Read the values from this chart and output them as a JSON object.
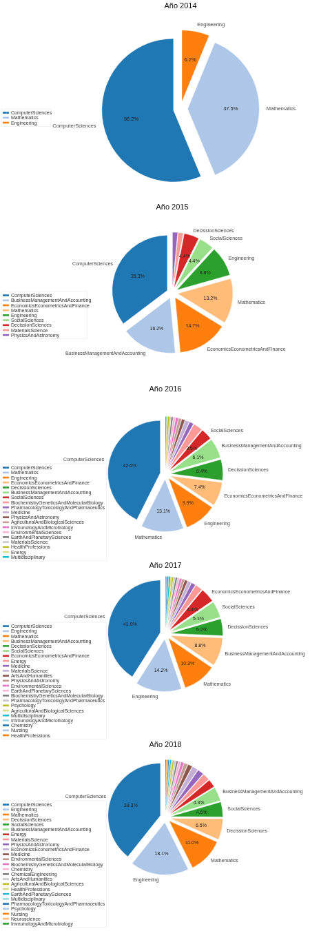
{
  "chart_data": [
    {
      "type": "pie",
      "title": "Año 2014",
      "legend": "left",
      "categories": [
        "ComputerSciences",
        "Mathematics",
        "Engineering"
      ],
      "values": [
        56.2,
        37.5,
        6.2
      ],
      "colors": [
        "#1f77b4",
        "#aec7e8",
        "#ff7f0e"
      ],
      "value_labels": [
        "56.2%",
        "37.5%",
        "6.2%"
      ]
    },
    {
      "type": "pie",
      "title": "Año 2015",
      "legend": "left",
      "categories": [
        "ComputerSciences",
        "BusinessManagementAndAccounting",
        "EconomicsEconometricsAndFinance",
        "Mathematics",
        "Engineering",
        "SocialSciences",
        "DecissionSciences",
        "MaterialsScience",
        "PhysicsAndAstronomy"
      ],
      "values": [
        35.3,
        16.2,
        14.7,
        13.2,
        8.8,
        4.4,
        4.4,
        1.5,
        1.5
      ],
      "colors": [
        "#1f77b4",
        "#aec7e8",
        "#ff7f0e",
        "#ffbb78",
        "#2ca02c",
        "#98df8a",
        "#d62728",
        "#ff9896",
        "#9467bd"
      ],
      "value_labels": [
        "35.3%",
        "16.2%",
        "14.7%",
        "13.2%",
        "8.8%",
        "4.4%",
        "4.4%",
        null,
        null
      ]
    },
    {
      "type": "pie",
      "title": "Año 2016",
      "legend": "left",
      "categories": [
        "ComputerSciences",
        "Mathematics",
        "Engineering",
        "EconomicsEconometricsAndFinance",
        "DecissionSciences",
        "BusinessManagementAndAccounting",
        "SocialSciences",
        "BiochemistryGeneticsAndMolecularBiology",
        "PharmacologyToxicologyAndPharmaceutics",
        "Medicine",
        "PhysicsAndAstronomy",
        "AgriculturalAndBiologicalSciences",
        "ImmunologyAndMicrobiology",
        "EnvironmentalSciences",
        "EarthAndPlanetarySciences",
        "MaterialsScience",
        "HealthProfessions",
        "Energy",
        "Multidisciplinary"
      ],
      "values": [
        42.6,
        13.1,
        9.9,
        7.4,
        6.4,
        6.1,
        3.5,
        2.8,
        1.3,
        1.3,
        1.0,
        0.9,
        0.8,
        0.7,
        0.6,
        0.5,
        0.4,
        0.4,
        0.3
      ],
      "colors": [
        "#1f77b4",
        "#aec7e8",
        "#ff7f0e",
        "#ffbb78",
        "#2ca02c",
        "#98df8a",
        "#d62728",
        "#ff9896",
        "#9467bd",
        "#c5b0d5",
        "#8c564b",
        "#c49c94",
        "#e377c2",
        "#f7b6d2",
        "#7f7f7f",
        "#c7c7c7",
        "#bcbd22",
        "#dbdb8d",
        "#17becf"
      ],
      "value_labels": [
        "42.6%",
        "13.1%",
        "9.9%",
        "7.4%",
        "6.4%",
        "6.1%",
        "3.5%",
        null,
        null,
        null,
        null,
        null,
        null,
        null,
        null,
        null,
        null,
        null,
        null
      ]
    },
    {
      "type": "pie",
      "title": "Año 2017",
      "legend": "left",
      "categories": [
        "ComputerSciences",
        "Engineering",
        "Mathematics",
        "BusinessManagementAndAccounting",
        "DecissionSciences",
        "SocialSciences",
        "EconomicsEconometricsAndFinance",
        "Energy",
        "Medicine",
        "MaterialsScience",
        "ArtsAndHumanities",
        "PhysicsAndAstronomy",
        "EnvironmentalSciences",
        "EarthAndPlanetarySciences",
        "BiochemistryGeneticsAndMolecularBiology",
        "PharmacologyToxicologyAndPharmaceutics",
        "Psychology",
        "AgriculturalAndBiologicalSciences",
        "Multidisciplinary",
        "ImmunologyAndMicrobiology",
        "Chemistry",
        "Nursing",
        "HealthProfessions"
      ],
      "values": [
        41.0,
        14.2,
        10.3,
        8.8,
        5.2,
        5.1,
        4.4,
        2.2,
        1.3,
        1.1,
        0.9,
        0.8,
        0.7,
        0.6,
        0.6,
        0.5,
        0.5,
        0.4,
        0.4,
        0.3,
        0.3,
        0.2,
        0.2
      ],
      "colors": [
        "#1f77b4",
        "#aec7e8",
        "#ff7f0e",
        "#ffbb78",
        "#2ca02c",
        "#98df8a",
        "#d62728",
        "#ff9896",
        "#9467bd",
        "#c5b0d5",
        "#8c564b",
        "#c49c94",
        "#e377c2",
        "#f7b6d2",
        "#7f7f7f",
        "#c7c7c7",
        "#bcbd22",
        "#dbdb8d",
        "#17becf",
        "#9edae5",
        "#1f77b4",
        "#aec7e8",
        "#ff7f0e"
      ],
      "value_labels": [
        "41.0%",
        "14.2%",
        "10.3%",
        "8.8%",
        "5.2%",
        "5.1%",
        "4.4%",
        null,
        null,
        null,
        null,
        null,
        null,
        null,
        null,
        null,
        null,
        null,
        null,
        null,
        null,
        null,
        null
      ]
    },
    {
      "type": "pie",
      "title": "Año 2018",
      "legend": "left",
      "categories": [
        "ComputerSciences",
        "Engineering",
        "Mathematics",
        "DecissionSciences",
        "SocialSciences",
        "BusinessManagementAndAccounting",
        "Energy",
        "MaterialsScience",
        "PhysicsAndAstronomy",
        "EconomicsEconometricsAndFinance",
        "Medicine",
        "EnvironmentalSciences",
        "BiochemistryGeneticsAndMolecularBiology",
        "Chemistry",
        "ChemicalEngineering",
        "ArtsAndHumanities",
        "AgriculturalAndBiologicalSciences",
        "HealthProfessions",
        "EarthAndPlanetarySciences",
        "Multidisciplinary",
        "PharmacologyToxicologyAndPharmaceutics",
        "Psychology",
        "Nursing",
        "Neuroscience",
        "ImmunologyAndMicrobiology"
      ],
      "values": [
        39.3,
        18.1,
        11.0,
        6.5,
        4.6,
        4.3,
        2.5,
        2.2,
        1.9,
        1.8,
        1.4,
        1.1,
        0.9,
        0.8,
        0.6,
        0.5,
        0.5,
        0.4,
        0.3,
        0.3,
        0.2,
        0.2,
        0.2,
        0.2,
        0.2
      ],
      "colors": [
        "#1f77b4",
        "#aec7e8",
        "#ff7f0e",
        "#ffbb78",
        "#2ca02c",
        "#98df8a",
        "#d62728",
        "#ff9896",
        "#9467bd",
        "#c5b0d5",
        "#8c564b",
        "#c49c94",
        "#e377c2",
        "#f7b6d2",
        "#7f7f7f",
        "#c7c7c7",
        "#bcbd22",
        "#dbdb8d",
        "#17becf",
        "#9edae5",
        "#1f77b4",
        "#aec7e8",
        "#ff7f0e",
        "#ffbb78",
        "#2ca02c"
      ],
      "value_labels": [
        "39.3%",
        "18.1%",
        "11.0%",
        "6.5%",
        "4.6%",
        "4.3%",
        null,
        null,
        null,
        null,
        null,
        null,
        null,
        null,
        null,
        null,
        null,
        null,
        null,
        null,
        null,
        null,
        null,
        null,
        null
      ]
    }
  ]
}
